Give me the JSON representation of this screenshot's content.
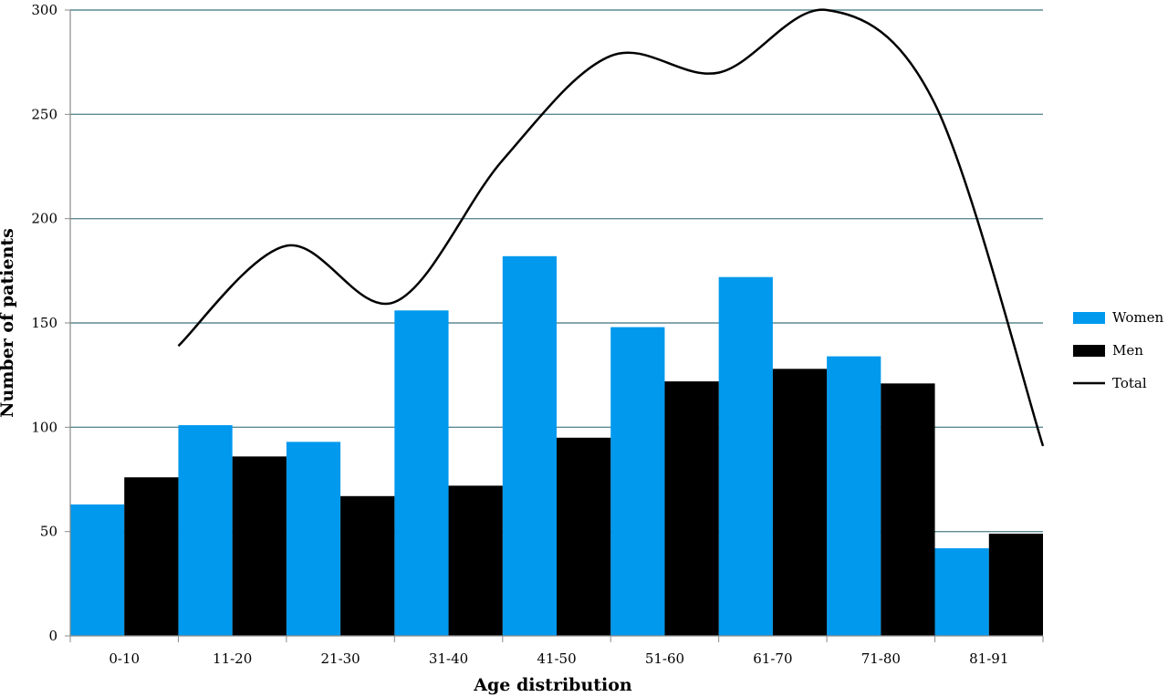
{
  "chart_data": {
    "type": "bar",
    "title": "",
    "xlabel": "Age distribution",
    "ylabel": "Number of patients",
    "ylim": [
      0,
      300
    ],
    "yticks": [
      0,
      50,
      100,
      150,
      200,
      250,
      300
    ],
    "grid": true,
    "legend_position": "right",
    "categories": [
      "0-10",
      "11-20",
      "21-30",
      "31-40",
      "41-50",
      "51-60",
      "61-70",
      "71-80",
      "81-91"
    ],
    "series": [
      {
        "name": "Women",
        "kind": "bar",
        "color": "#0099ee",
        "values": [
          63,
          101,
          93,
          156,
          182,
          148,
          172,
          134,
          42
        ]
      },
      {
        "name": "Men",
        "kind": "bar",
        "color": "#000000",
        "values": [
          76,
          86,
          67,
          72,
          95,
          122,
          128,
          121,
          49
        ]
      },
      {
        "name": "Total",
        "kind": "line",
        "color": "#000000",
        "values": [
          139,
          187,
          160,
          228,
          278,
          270,
          300,
          255,
          91
        ]
      }
    ]
  }
}
